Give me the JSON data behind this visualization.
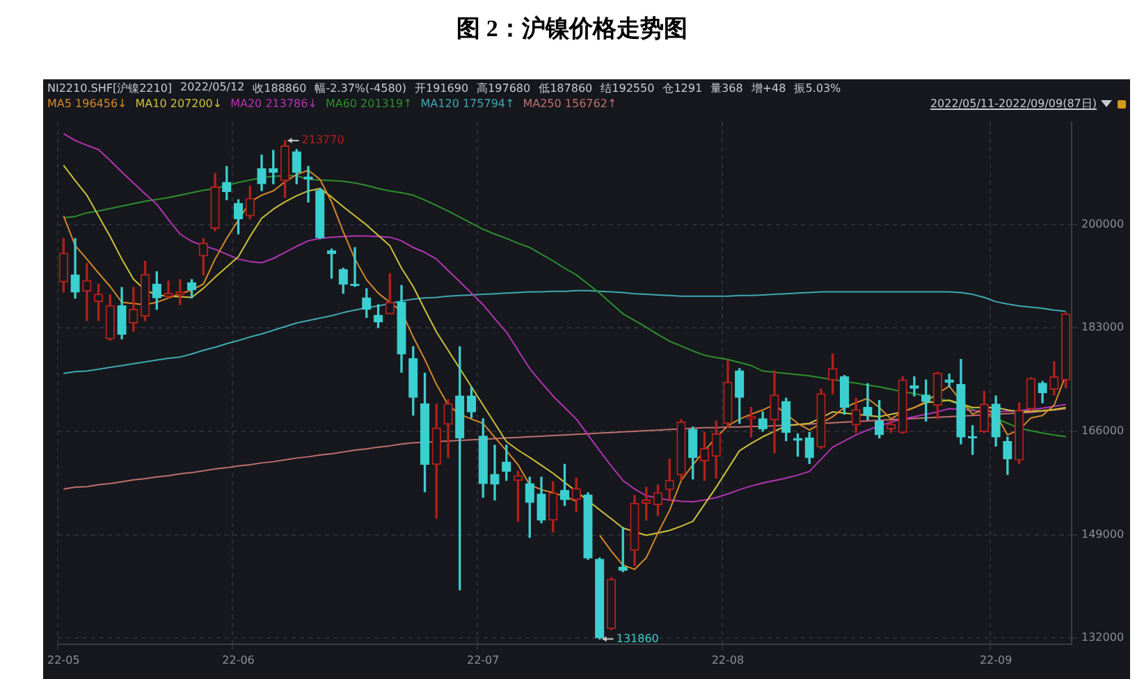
{
  "chart_data": {
    "type": "candlestick",
    "title": "图 2：沪镍价格走势图",
    "annotations": [
      "NI2210.SHF[沪镍2210]",
      "2022/05/12",
      "收188860",
      "幅-2.37%(-4580)",
      "开191690",
      "高197680",
      "低187860",
      "结192550",
      "仓1291",
      "量368",
      "增+48",
      "振5.03%",
      "2022/05/11-2022/09/09(87日)",
      "213770",
      "131860"
    ],
    "categories": [
      "22-05",
      null,
      null,
      null,
      null,
      null,
      null,
      null,
      null,
      null,
      null,
      null,
      null,
      null,
      null,
      "22-06",
      null,
      null,
      null,
      null,
      null,
      null,
      null,
      null,
      null,
      null,
      null,
      null,
      null,
      null,
      null,
      null,
      null,
      null,
      null,
      null,
      "22-07",
      null,
      null,
      null,
      null,
      null,
      null,
      null,
      null,
      null,
      null,
      null,
      null,
      null,
      null,
      null,
      null,
      null,
      null,
      null,
      null,
      "22-08",
      null,
      null,
      null,
      null,
      null,
      null,
      null,
      null,
      null,
      null,
      null,
      null,
      null,
      null,
      null,
      null,
      null,
      null,
      null,
      null,
      null,
      null,
      "22-09",
      null,
      null,
      null,
      null,
      null,
      null
    ],
    "ohlc": [
      [
        190550,
        197675,
        188900,
        195275
      ],
      [
        191690,
        197680,
        187860,
        188860
      ],
      [
        189050,
        193550,
        184175,
        190775
      ],
      [
        187325,
        190175,
        184175,
        188525
      ],
      [
        181175,
        188450,
        180950,
        186650
      ],
      [
        186650,
        189650,
        181175,
        181925
      ],
      [
        183800,
        189650,
        182450,
        186050
      ],
      [
        184925,
        193925,
        184175,
        191750
      ],
      [
        190175,
        192200,
        186050,
        187925
      ],
      [
        188150,
        190700,
        187925,
        188675
      ],
      [
        188450,
        190925,
        186800,
        188900
      ],
      [
        190400,
        190925,
        187925,
        189275
      ],
      [
        194825,
        197675,
        191675,
        196925
      ],
      [
        199325,
        208400,
        198950,
        206150
      ],
      [
        206900,
        209525,
        204050,
        205400
      ],
      [
        203450,
        204050,
        198425,
        200900
      ],
      [
        201425,
        206300,
        200900,
        204275
      ],
      [
        209150,
        211400,
        205550,
        206675
      ],
      [
        209150,
        212150,
        206675,
        208550
      ],
      [
        207200,
        213770,
        204425,
        212900
      ],
      [
        211925,
        212300,
        206675,
        208550
      ],
      [
        207800,
        209525,
        203675,
        207425
      ],
      [
        205550,
        205925,
        197675,
        197825
      ],
      [
        195650,
        195950,
        191150,
        195200
      ],
      [
        192575,
        192800,
        188675,
        190175
      ],
      [
        190175,
        196175,
        189800,
        189950
      ],
      [
        187925,
        189425,
        184700,
        186050
      ],
      [
        185075,
        186800,
        183050,
        183950
      ],
      [
        185300,
        191900,
        185300,
        187175
      ],
      [
        187175,
        189950,
        175700,
        178700
      ],
      [
        177950,
        179900,
        168650,
        171575
      ],
      [
        170525,
        175550,
        156050,
        160550
      ],
      [
        160550,
        170450,
        151700,
        166550
      ],
      [
        167150,
        171200,
        161675,
        170525
      ],
      [
        171800,
        179900,
        139925,
        164900
      ],
      [
        171800,
        173300,
        168200,
        169175
      ],
      [
        165200,
        168050,
        155150,
        157400
      ],
      [
        158900,
        163700,
        154700,
        157325
      ],
      [
        160925,
        163700,
        157925,
        159425
      ],
      [
        157925,
        159425,
        151175,
        158675
      ],
      [
        157400,
        158450,
        148550,
        154325
      ],
      [
        155675,
        158450,
        150950,
        151400
      ],
      [
        151400,
        157700,
        149450,
        155825
      ],
      [
        156275,
        160550,
        153800,
        154775
      ],
      [
        154775,
        158300,
        152825,
        156575
      ],
      [
        155525,
        155900,
        144950,
        145175
      ],
      [
        144950,
        145175,
        131860,
        132050
      ],
      [
        133550,
        141950,
        133400,
        141650
      ],
      [
        143675,
        150200,
        142925,
        143150
      ],
      [
        146450,
        155450,
        143900,
        154175
      ],
      [
        154175,
        156800,
        151400,
        154700
      ],
      [
        153950,
        157175,
        152150,
        155900
      ],
      [
        156425,
        161450,
        154550,
        157925
      ],
      [
        158825,
        167900,
        157925,
        167525
      ],
      [
        166325,
        166700,
        158150,
        161675
      ],
      [
        161150,
        165800,
        157925,
        163175
      ],
      [
        161900,
        167675,
        158300,
        165575
      ],
      [
        167300,
        177650,
        166550,
        174050
      ],
      [
        175925,
        176300,
        167300,
        171575
      ],
      [
        168050,
        169925,
        165050,
        168425
      ],
      [
        168050,
        169175,
        166025,
        166400
      ],
      [
        167900,
        175925,
        162425,
        171950
      ],
      [
        170900,
        171425,
        164450,
        165800
      ],
      [
        164825,
        165575,
        161900,
        164525
      ],
      [
        164900,
        165800,
        160700,
        161675
      ],
      [
        163400,
        172925,
        163175,
        172175
      ],
      [
        174425,
        178700,
        172175,
        176300
      ],
      [
        174950,
        175175,
        168800,
        169925
      ],
      [
        167075,
        171425,
        165800,
        169550
      ],
      [
        169925,
        173825,
        167900,
        168650
      ],
      [
        167675,
        171050,
        164900,
        165425
      ],
      [
        166400,
        167675,
        165800,
        167150
      ],
      [
        165800,
        174950,
        165650,
        174425
      ],
      [
        173450,
        174950,
        171800,
        173075
      ],
      [
        171950,
        174425,
        167675,
        170900
      ],
      [
        170300,
        175700,
        168050,
        175550
      ],
      [
        174425,
        175400,
        173300,
        174050
      ],
      [
        173675,
        177800,
        163925,
        165050
      ],
      [
        165050,
        166925,
        162200,
        164900
      ],
      [
        165950,
        172550,
        165800,
        170450
      ],
      [
        170450,
        171800,
        163550,
        165050
      ],
      [
        164300,
        165050,
        158900,
        161450
      ],
      [
        161300,
        170675,
        160700,
        169400
      ],
      [
        169700,
        174800,
        169400,
        174650
      ],
      [
        173900,
        174200,
        170675,
        172325
      ],
      [
        172925,
        177425,
        171950,
        174950
      ],
      [
        174425,
        185450,
        173150,
        185300
      ]
    ],
    "colors": [
      "#b3201b",
      "#3ccfcf",
      "#b3201b",
      "#b3201b",
      "#b3201b",
      "#3ccfcf",
      "#b3201b",
      "#b3201b",
      "#3ccfcf",
      "#b3201b",
      "#b3201b",
      "#3ccfcf",
      "#b3201b",
      "#b3201b",
      "#3ccfcf",
      "#3ccfcf",
      "#b3201b",
      "#3ccfcf",
      "#3ccfcf",
      "#b3201b",
      "#3ccfcf",
      "#3ccfcf",
      "#3ccfcf",
      "#3ccfcf",
      "#3ccfcf",
      "#3ccfcf",
      "#3ccfcf",
      "#3ccfcf",
      "#b3201b",
      "#3ccfcf",
      "#3ccfcf",
      "#3ccfcf",
      "#b3201b",
      "#b3201b",
      "#3ccfcf",
      "#3ccfcf",
      "#3ccfcf",
      "#3ccfcf",
      "#3ccfcf",
      "#b3201b",
      "#3ccfcf",
      "#3ccfcf",
      "#b3201b",
      "#3ccfcf",
      "#b3201b",
      "#3ccfcf",
      "#3ccfcf",
      "#b3201b",
      "#3ccfcf",
      "#b3201b",
      "#b3201b",
      "#b3201b",
      "#b3201b",
      "#b3201b",
      "#3ccfcf",
      "#b3201b",
      "#b3201b",
      "#b3201b",
      "#3ccfcf",
      "#b3201b",
      "#3ccfcf",
      "#b3201b",
      "#3ccfcf",
      "#3ccfcf",
      "#3ccfcf",
      "#b3201b",
      "#b3201b",
      "#3ccfcf",
      "#b3201b",
      "#3ccfcf",
      "#3ccfcf",
      "#b3201b",
      "#b3201b",
      "#3ccfcf",
      "#3ccfcf",
      "#b3201b",
      "#3ccfcf",
      "#3ccfcf",
      "#3ccfcf",
      "#b3201b",
      "#3ccfcf",
      "#3ccfcf",
      "#b3201b",
      "#b3201b",
      "#3ccfcf",
      "#b3201b",
      "#b3201b"
    ],
    "series": [
      {
        "name": "MA5 196456↓",
        "type": "line",
        "color": "#d8892a",
        "values": [
          201400,
          196500,
          194300,
          192000,
          189800,
          187200,
          187000,
          186800,
          187200,
          187900,
          188600,
          189200,
          190200,
          194300,
          197700,
          200700,
          203700,
          204800,
          205500,
          207000,
          208200,
          208900,
          207400,
          203700,
          198800,
          194300,
          190900,
          188700,
          187200,
          185700,
          181500,
          177800,
          173700,
          170300,
          168800,
          168000,
          167300,
          165000,
          162800,
          160500,
          157200,
          156400,
          155900,
          155300,
          154500,
          null,
          148900,
          146300,
          144000,
          143300,
          145200,
          149300,
          153000,
          157900,
          160500,
          162800,
          165000,
          166900,
          168000,
          168800,
          169500,
          170400,
          168800,
          167300,
          166200,
          167300,
          168400,
          169900,
          170700,
          171400,
          169900,
          168000,
          169200,
          169900,
          170900,
          172200,
          173400,
          171000,
          168800,
          169700,
          168800,
          165400,
          166200,
          168200,
          168600,
          170300,
          175200
        ]
      },
      {
        "name": "MA10 207200↓",
        "type": "line",
        "color": "#cfc23a",
        "values": [
          209700,
          207200,
          204800,
          201400,
          198000,
          194300,
          191000,
          189200,
          188400,
          188200,
          188100,
          188000,
          189500,
          191300,
          193000,
          194700,
          198000,
          201000,
          202500,
          203700,
          204700,
          205500,
          205900,
          204500,
          202900,
          201400,
          199900,
          198200,
          196500,
          192800,
          189800,
          186000,
          182300,
          179300,
          176300,
          173300,
          170300,
          167300,
          164300,
          162900,
          161700,
          160400,
          159100,
          157600,
          156100,
          154600,
          153100,
          151600,
          150100,
          149500,
          148900,
          149300,
          149700,
          150400,
          151200,
          154000,
          156800,
          159800,
          162800,
          164000,
          165100,
          166000,
          166900,
          167100,
          167300,
          168200,
          169200,
          169000,
          168800,
          168600,
          168400,
          168800,
          169200,
          169900,
          170700,
          170900,
          171100,
          170500,
          169900,
          169900,
          169900,
          169500,
          169200,
          169300,
          169400,
          169600,
          169900
        ]
      },
      {
        "name": "MA20 213786↓",
        "type": "line",
        "color": "#b534b5",
        "values": [
          214900,
          213800,
          213000,
          212300,
          210500,
          208600,
          206800,
          205000,
          203300,
          200800,
          198400,
          197200,
          196500,
          195900,
          195100,
          194300,
          193900,
          193700,
          194400,
          195400,
          196400,
          197300,
          197700,
          197900,
          198000,
          198100,
          198100,
          198000,
          197900,
          197300,
          196200,
          195400,
          194300,
          192400,
          190600,
          188700,
          186800,
          184500,
          182300,
          179300,
          176300,
          174000,
          171800,
          169900,
          168000,
          165400,
          162800,
          160300,
          157900,
          156500,
          155400,
          155000,
          154700,
          154500,
          154400,
          154700,
          155100,
          155700,
          156400,
          157000,
          157500,
          157900,
          158300,
          158800,
          159400,
          161400,
          163400,
          164400,
          165400,
          166200,
          166900,
          167500,
          168000,
          168400,
          168800,
          169200,
          169700,
          169600,
          169400,
          169300,
          169200,
          169300,
          169400,
          169600,
          169800,
          170100,
          170400
        ]
      },
      {
        "name": "MA60 201319↑",
        "type": "line",
        "color": "#2f8f2f",
        "values": [
          201100,
          201300,
          201900,
          202200,
          202600,
          203000,
          203400,
          203800,
          204100,
          204400,
          204800,
          205200,
          205600,
          205900,
          206400,
          206900,
          207300,
          207700,
          207900,
          208000,
          208000,
          207400,
          207300,
          207200,
          207100,
          206800,
          206400,
          205900,
          205500,
          205200,
          204800,
          204000,
          203100,
          202200,
          201200,
          200200,
          199200,
          198400,
          197700,
          196900,
          196200,
          195100,
          194000,
          192800,
          191700,
          190200,
          188700,
          187000,
          185300,
          184200,
          183100,
          181900,
          180800,
          180000,
          179200,
          178500,
          178100,
          177800,
          177300,
          176800,
          175900,
          175700,
          175500,
          175300,
          175100,
          174800,
          174500,
          174200,
          173900,
          173600,
          173300,
          172900,
          172500,
          172200,
          171800,
          171400,
          171000,
          170300,
          169600,
          168800,
          168100,
          167300,
          166500,
          166100,
          165700,
          165400,
          165100
        ]
      },
      {
        "name": "MA120 175794↑",
        "type": "line",
        "color": "#3fa9b3",
        "values": [
          175500,
          175800,
          175900,
          176200,
          176500,
          176800,
          177100,
          177400,
          177700,
          178000,
          178200,
          178700,
          179300,
          179800,
          180400,
          180900,
          181500,
          182000,
          182600,
          183200,
          183800,
          184200,
          184600,
          185000,
          185500,
          185900,
          186300,
          186600,
          187000,
          187400,
          187700,
          187900,
          188000,
          188200,
          188300,
          188400,
          188500,
          188600,
          188700,
          188800,
          188900,
          188900,
          189000,
          189000,
          189100,
          189100,
          189000,
          188900,
          188800,
          188600,
          188500,
          188400,
          188300,
          188200,
          188200,
          188200,
          188200,
          188200,
          188300,
          188300,
          188400,
          188500,
          188600,
          188700,
          188800,
          188900,
          188900,
          188900,
          188900,
          188900,
          188900,
          188900,
          188900,
          188900,
          188900,
          188900,
          188900,
          188800,
          188500,
          188000,
          187300,
          186900,
          186600,
          186400,
          186200,
          185900,
          185700
        ]
      },
      {
        "name": "MA250 156762↑",
        "type": "line",
        "color": "#c07070",
        "values": [
          156500,
          156800,
          156900,
          157200,
          157400,
          157700,
          158000,
          158200,
          158500,
          158700,
          159000,
          159200,
          159500,
          159800,
          160000,
          160300,
          160500,
          160800,
          161000,
          161300,
          161600,
          161800,
          162100,
          162300,
          162600,
          162900,
          163100,
          163400,
          163600,
          163900,
          164100,
          164200,
          164300,
          164400,
          164500,
          164600,
          164700,
          164800,
          164900,
          165000,
          165100,
          165200,
          165300,
          165400,
          165500,
          165600,
          165700,
          165800,
          165900,
          166000,
          166100,
          166200,
          166300,
          166400,
          166500,
          166600,
          166600,
          166700,
          166700,
          166800,
          166800,
          166900,
          167000,
          167100,
          167200,
          167300,
          167400,
          167500,
          167600,
          167700,
          167800,
          167900,
          168000,
          168100,
          168200,
          168300,
          168400,
          168500,
          168600,
          168700,
          168800,
          168900,
          169000,
          169100,
          169300,
          169500,
          169700
        ]
      }
    ],
    "ylim": [
      131000,
      216800
    ],
    "yticks": [
      132000,
      149000,
      166000,
      183000,
      200000
    ],
    "grid": true,
    "legend": "top left"
  }
}
